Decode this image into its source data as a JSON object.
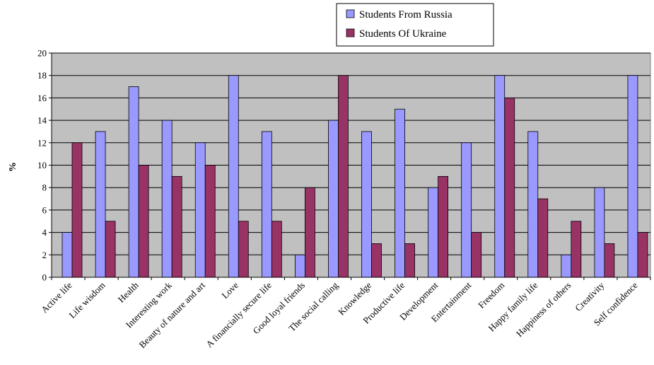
{
  "chart_data": {
    "type": "bar",
    "title": "",
    "xlabel": "",
    "ylabel": "%",
    "ylim": [
      0,
      20
    ],
    "yticks": [
      0,
      2,
      4,
      6,
      8,
      10,
      12,
      14,
      16,
      18,
      20
    ],
    "grid": true,
    "legend_position": "top-center",
    "categories": [
      "Active  life",
      "Life wisdom",
      "Health",
      "Interesting work",
      "Beauty of nature and art",
      "Love",
      "A financially secure life",
      "Good loyal friends",
      "The social calling",
      "Knowledge",
      "Productive life",
      "Development",
      "Entertainment",
      "Freedom",
      "Happy family life",
      "Happiness of others",
      "Creativity",
      "Self confidence"
    ],
    "series": [
      {
        "name": "Students From Russia",
        "color": "#9999ff",
        "values": [
          4,
          13,
          17,
          14,
          12,
          18,
          13,
          2,
          14,
          13,
          15,
          8,
          12,
          18,
          13,
          2,
          8,
          18
        ]
      },
      {
        "name": "Students Of Ukraine",
        "color": "#993366",
        "values": [
          12,
          5,
          10,
          9,
          10,
          5,
          5,
          8,
          18,
          3,
          3,
          9,
          4,
          16,
          7,
          5,
          3,
          4
        ]
      }
    ],
    "plot_background": "#c0c0c0"
  }
}
